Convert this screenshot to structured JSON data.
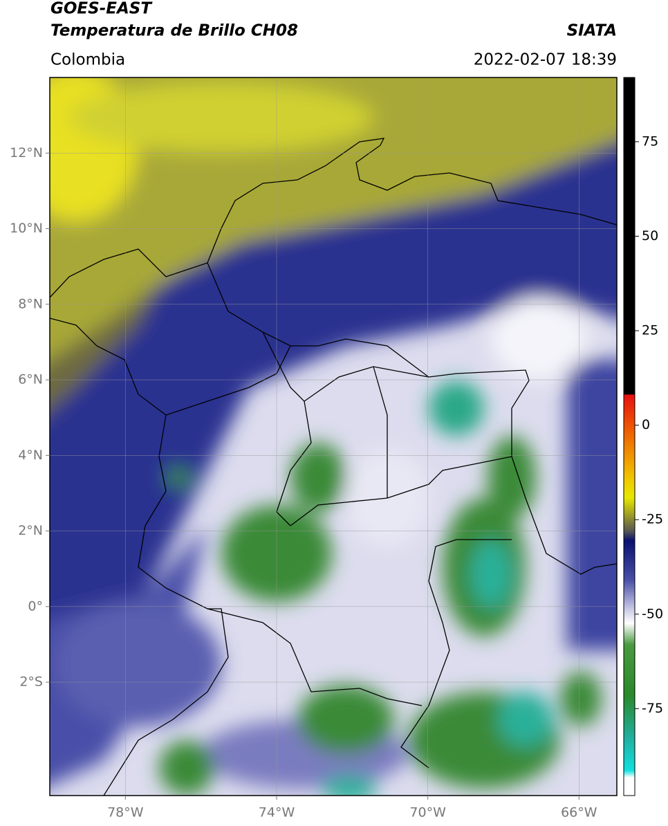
{
  "header": {
    "title": "GOES-EAST",
    "subtitle": "Temperatura de Brillo CH08",
    "source": "SIATA",
    "region": "Colombia",
    "timestamp": "2022-02-07 18:39"
  },
  "map": {
    "xlim": [
      -80,
      -65
    ],
    "ylim": [
      -5,
      14
    ],
    "xticks": [
      {
        "value": -78,
        "label": "78°W"
      },
      {
        "value": -74,
        "label": "74°W"
      },
      {
        "value": -70,
        "label": "70°W"
      },
      {
        "value": -66,
        "label": "66°W"
      }
    ],
    "yticks": [
      {
        "value": 12,
        "label": "12°N"
      },
      {
        "value": 10,
        "label": "10°N"
      },
      {
        "value": 8,
        "label": "8°N"
      },
      {
        "value": 6,
        "label": "6°N"
      },
      {
        "value": 4,
        "label": "4°N"
      },
      {
        "value": 2,
        "label": "2°N"
      },
      {
        "value": 0,
        "label": "0°"
      },
      {
        "value": -2,
        "label": "2°S"
      }
    ],
    "grid": true
  },
  "colorbar": {
    "lim": [
      -98,
      92
    ],
    "ticks": [
      75,
      50,
      25,
      0,
      -25,
      -50,
      -75
    ]
  }
}
